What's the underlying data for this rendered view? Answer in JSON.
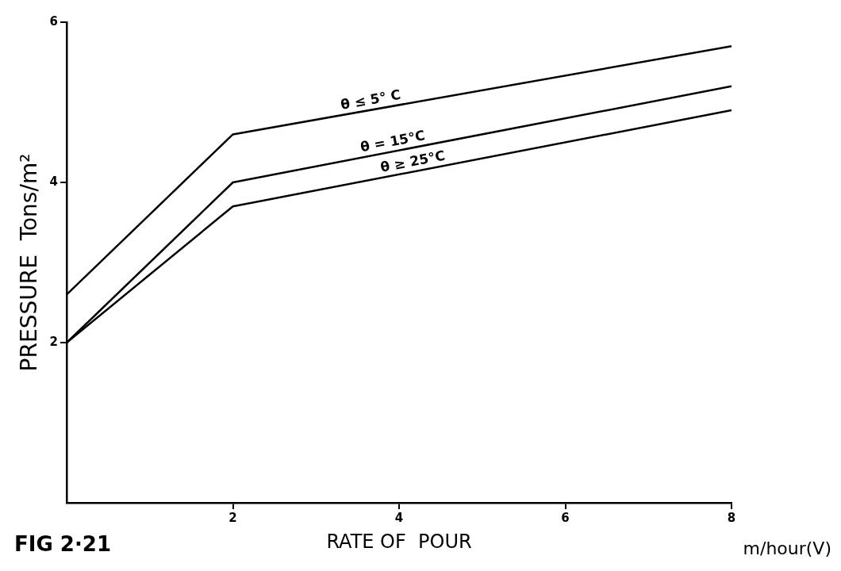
{
  "chart_data": {
    "type": "line",
    "title": "FIG 2·21",
    "xlabel": "RATE OF  POUR",
    "ylabel": "PRESSURE  Tons/m²",
    "annotations": [
      "m/hour(V)"
    ],
    "x": [
      0,
      2,
      8
    ],
    "series": [
      {
        "name": "θ ≤ 5° C",
        "color": "#000000",
        "values": [
          2.6,
          4.6,
          5.7
        ]
      },
      {
        "name": "θ = 15°C",
        "color": "#000000",
        "values": [
          2,
          4.0,
          5.2
        ]
      },
      {
        "name": "θ ≥ 25°C",
        "color": "#000000",
        "values": [
          2,
          3.7,
          4.9
        ]
      }
    ],
    "xlim": [
      0,
      8
    ],
    "xticks": [
      2,
      4,
      6,
      8
    ],
    "ylim": [
      0,
      6
    ],
    "yticks": [
      2,
      4,
      6
    ],
    "grid": false,
    "legend": false,
    "marker": "none",
    "line_style": "solid"
  }
}
